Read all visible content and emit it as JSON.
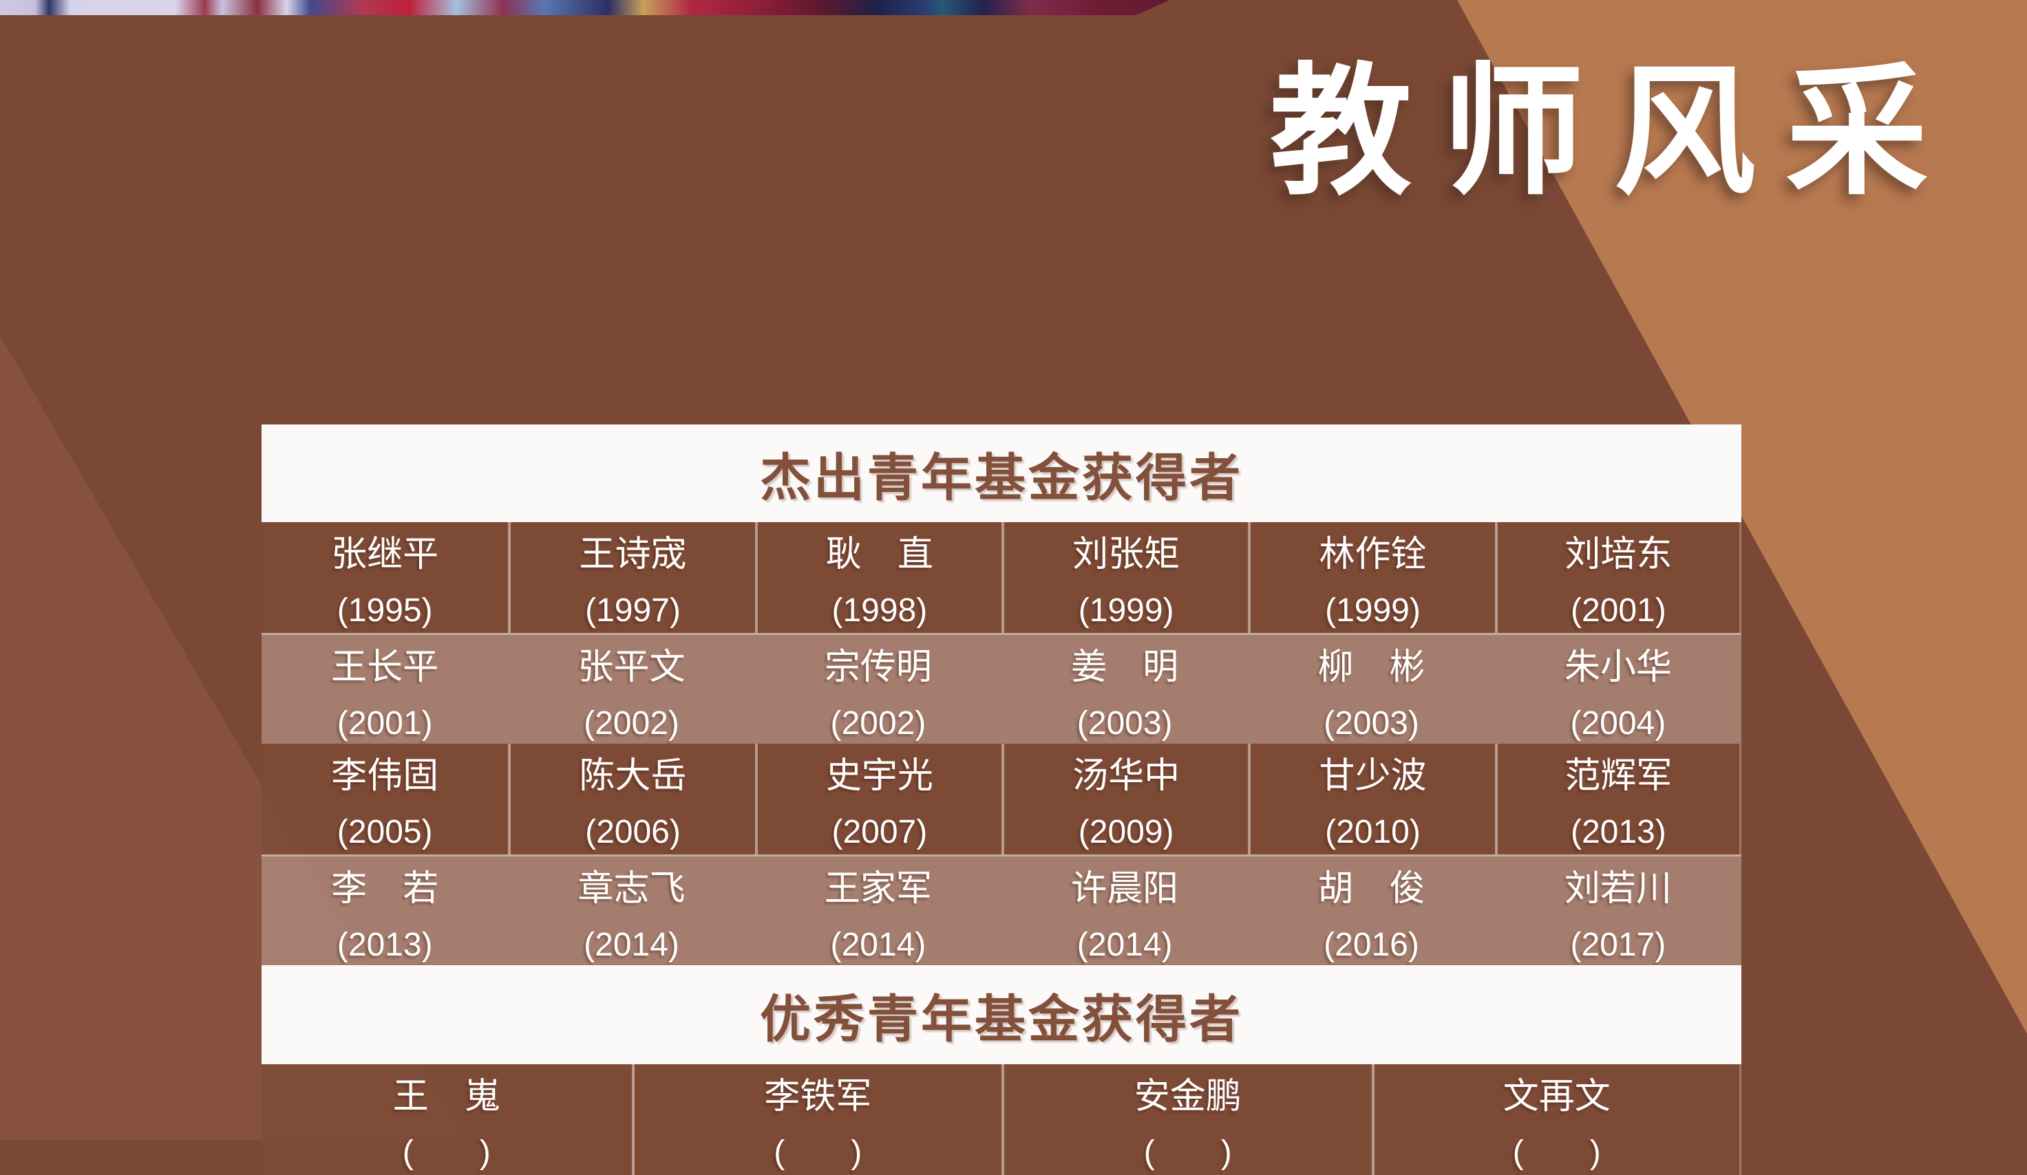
{
  "title": "教师风采",
  "colors": {
    "bg-dark": "#7A4834",
    "bg-left": "#86523F",
    "bg-tan": "#B77950",
    "header-bg": "#FCFAF9",
    "header-text": "#82503B",
    "text-light": "#FFFFFF",
    "title": "#FFFFFF"
  },
  "tables": [
    {
      "header": "杰出青年基金获得者",
      "columns": 6,
      "rows": [
        [
          {
            "name": "张继平",
            "year": "(1995)"
          },
          {
            "name": "王诗宬",
            "year": "(1997)"
          },
          {
            "name": "耿　直",
            "year": "(1998)"
          },
          {
            "name": "刘张矩",
            "year": "(1999)"
          },
          {
            "name": "林作铨",
            "year": "(1999)"
          },
          {
            "name": "刘培东",
            "year": "(2001)"
          }
        ],
        [
          {
            "name": "王长平",
            "year": "(2001)"
          },
          {
            "name": "张平文",
            "year": "(2002)"
          },
          {
            "name": "宗传明",
            "year": "(2002)"
          },
          {
            "name": "姜　明",
            "year": "(2003)"
          },
          {
            "name": "柳　彬",
            "year": "(2003)"
          },
          {
            "name": "朱小华",
            "year": "(2004)"
          }
        ],
        [
          {
            "name": "李伟固",
            "year": "(2005)"
          },
          {
            "name": "陈大岳",
            "year": "(2006)"
          },
          {
            "name": "史宇光",
            "year": "(2007)"
          },
          {
            "name": "汤华中",
            "year": "(2009)"
          },
          {
            "name": "甘少波",
            "year": "(2010)"
          },
          {
            "name": "范辉军",
            "year": "(2013)"
          }
        ],
        [
          {
            "name": "李　若",
            "year": "(2013)"
          },
          {
            "name": "章志飞",
            "year": "(2014)"
          },
          {
            "name": "王家军",
            "year": "(2014)"
          },
          {
            "name": "许晨阳",
            "year": "(2014)"
          },
          {
            "name": "胡　俊",
            "year": "(2016)"
          },
          {
            "name": "刘若川",
            "year": "(2017)"
          }
        ]
      ]
    },
    {
      "header": "优秀青年基金获得者",
      "columns": 4,
      "rows": [
        [
          {
            "name": "王　嵬",
            "year": "(　　)"
          },
          {
            "name": "李铁军",
            "year": "(　　)"
          },
          {
            "name": "安金鹏",
            "year": "(　　)"
          },
          {
            "name": "文再文",
            "year": "(　　)"
          }
        ]
      ]
    }
  ]
}
